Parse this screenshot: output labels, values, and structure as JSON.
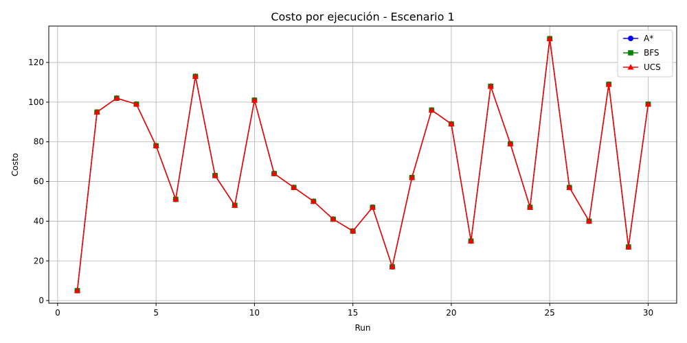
{
  "chart_data": {
    "type": "line",
    "title": "Costo por ejecución - Escenario 1",
    "xlabel": "Run",
    "ylabel": "Costo",
    "xlim": [
      -0.45,
      31.45
    ],
    "ylim": [
      -1.35,
      138.35
    ],
    "xticks": [
      0,
      5,
      10,
      15,
      20,
      25,
      30
    ],
    "yticks": [
      0,
      20,
      40,
      60,
      80,
      100,
      120
    ],
    "grid": true,
    "legend_position": "top-right",
    "x": [
      1,
      2,
      3,
      4,
      5,
      6,
      7,
      8,
      9,
      10,
      11,
      12,
      13,
      14,
      15,
      16,
      17,
      18,
      19,
      20,
      21,
      22,
      23,
      24,
      25,
      26,
      27,
      28,
      29,
      30
    ],
    "series": [
      {
        "name": "A*",
        "color": "#0000ff",
        "marker": "circle",
        "values": [
          5,
          95,
          102,
          99,
          78,
          51,
          113,
          63,
          48,
          101,
          64,
          57,
          50,
          41,
          35,
          47,
          17,
          62,
          96,
          89,
          30,
          108,
          79,
          47,
          132,
          57,
          40,
          109,
          27,
          99
        ]
      },
      {
        "name": "BFS",
        "color": "#008000",
        "marker": "square",
        "values": [
          5,
          95,
          102,
          99,
          78,
          51,
          113,
          63,
          48,
          101,
          64,
          57,
          50,
          41,
          35,
          47,
          17,
          62,
          96,
          89,
          30,
          108,
          79,
          47,
          132,
          57,
          40,
          109,
          27,
          99
        ]
      },
      {
        "name": "UCS",
        "color": "#ff0000",
        "marker": "triangle",
        "values": [
          5,
          95,
          102,
          99,
          78,
          51,
          113,
          63,
          48,
          101,
          64,
          57,
          50,
          41,
          35,
          47,
          17,
          62,
          96,
          89,
          30,
          108,
          79,
          47,
          132,
          57,
          40,
          109,
          27,
          99
        ]
      }
    ]
  }
}
